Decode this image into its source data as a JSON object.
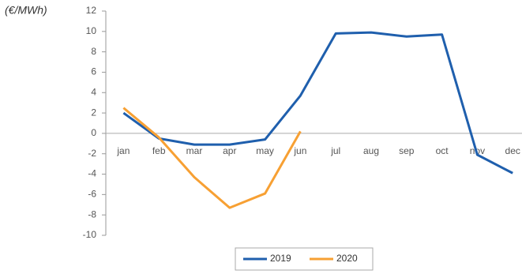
{
  "chart_data": {
    "type": "line",
    "y_label": "(€/MWh)",
    "categories": [
      "jan",
      "feb",
      "mar",
      "apr",
      "may",
      "jun",
      "jul",
      "aug",
      "sep",
      "oct",
      "nov",
      "dec"
    ],
    "series": [
      {
        "name": "2019",
        "color": "#1f5fad",
        "values": [
          2.0,
          -0.5,
          -1.1,
          -1.1,
          -0.6,
          3.7,
          9.8,
          9.9,
          9.5,
          9.7,
          -2.1,
          -3.9
        ]
      },
      {
        "name": "2020",
        "color": "#f7a033",
        "values": [
          2.5,
          -0.4,
          -4.3,
          -7.3,
          -5.9,
          0.2,
          null,
          null,
          null,
          null,
          null,
          null
        ]
      }
    ],
    "ylim": [
      -10,
      12
    ],
    "yticks": [
      -10,
      -8,
      -6,
      -4,
      -2,
      0,
      2,
      4,
      6,
      8,
      10,
      12
    ],
    "legend": "bottom"
  }
}
